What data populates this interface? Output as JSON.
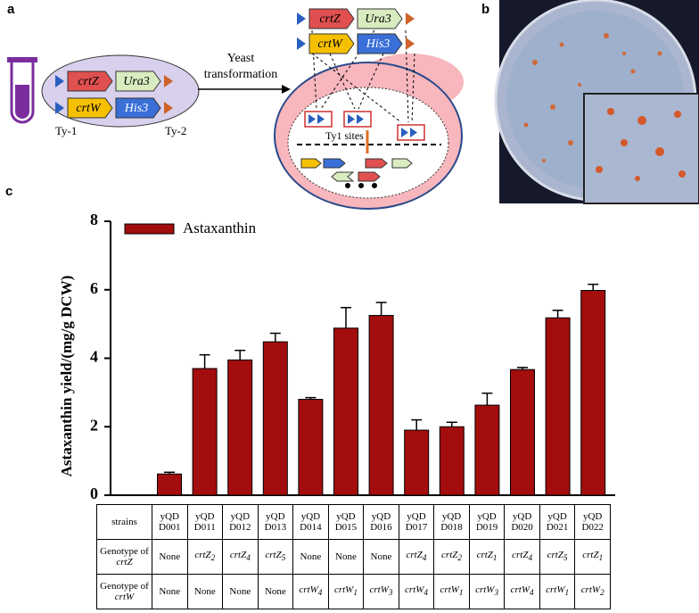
{
  "panel_labels": [
    "a",
    "b",
    "c"
  ],
  "diagram": {
    "genes": [
      "crtZ",
      "Ura3",
      "crtW",
      "His3"
    ],
    "ty_labels": [
      "Ty-1",
      "Ty-2"
    ],
    "arrow_label": [
      "Yeast",
      "transformation"
    ],
    "sites_label": "Ty1 sites"
  },
  "chart_data": {
    "type": "bar",
    "y_label": "Astaxanthin yield/(mg/g DCW)",
    "categories": [
      "yQD D001",
      "yQD D011",
      "yQD D012",
      "yQD D013",
      "yQD D014",
      "yQD D015",
      "yQD D016",
      "yQD D017",
      "yQD D018",
      "yQD D019",
      "yQD D020",
      "yQD D021",
      "yQD D022"
    ],
    "series": [
      {
        "name": "Astaxanthin",
        "color": "#a30d0d",
        "values": [
          0.62,
          3.7,
          3.95,
          4.48,
          2.8,
          4.88,
          5.25,
          1.9,
          2.0,
          2.63,
          3.67,
          5.18,
          5.98
        ],
        "errors": [
          0.05,
          0.4,
          0.28,
          0.25,
          0.05,
          0.6,
          0.38,
          0.3,
          0.13,
          0.35,
          0.06,
          0.22,
          0.18
        ]
      }
    ],
    "ylim": [
      0,
      8
    ],
    "yticks": [
      0,
      2,
      4,
      6,
      8
    ],
    "legend": "upper left"
  },
  "table": {
    "header": "strains",
    "rows": [
      {
        "label": "Genotype of",
        "gene": "crtZ",
        "cells": [
          "None",
          {
            "gene": "crtZ",
            "sub": "2"
          },
          {
            "gene": "crtZ",
            "sub": "4"
          },
          {
            "gene": "crtZ",
            "sub": "5"
          },
          "None",
          "None",
          "None",
          {
            "gene": "crtZ",
            "sub": "4"
          },
          {
            "gene": "crtZ",
            "sub": "2"
          },
          {
            "gene": "crtZ",
            "sub": "1"
          },
          {
            "gene": "crtZ",
            "sub": "4"
          },
          {
            "gene": "crtZ",
            "sub": "5"
          },
          {
            "gene": "crtZ",
            "sub": "1"
          }
        ]
      },
      {
        "label": "Genotype of",
        "gene": "crtW",
        "cells": [
          "None",
          "None",
          "None",
          "None",
          {
            "gene": "crtW",
            "sub": "4"
          },
          {
            "gene": "crtW",
            "sub": "1"
          },
          {
            "gene": "crtW",
            "sub": "3"
          },
          {
            "gene": "crtW",
            "sub": "4"
          },
          {
            "gene": "crtW",
            "sub": "1"
          },
          {
            "gene": "crtW",
            "sub": "3"
          },
          {
            "gene": "crtW",
            "sub": "4"
          },
          {
            "gene": "crtW",
            "sub": "1"
          },
          {
            "gene": "crtW",
            "sub": "2"
          }
        ]
      }
    ]
  }
}
